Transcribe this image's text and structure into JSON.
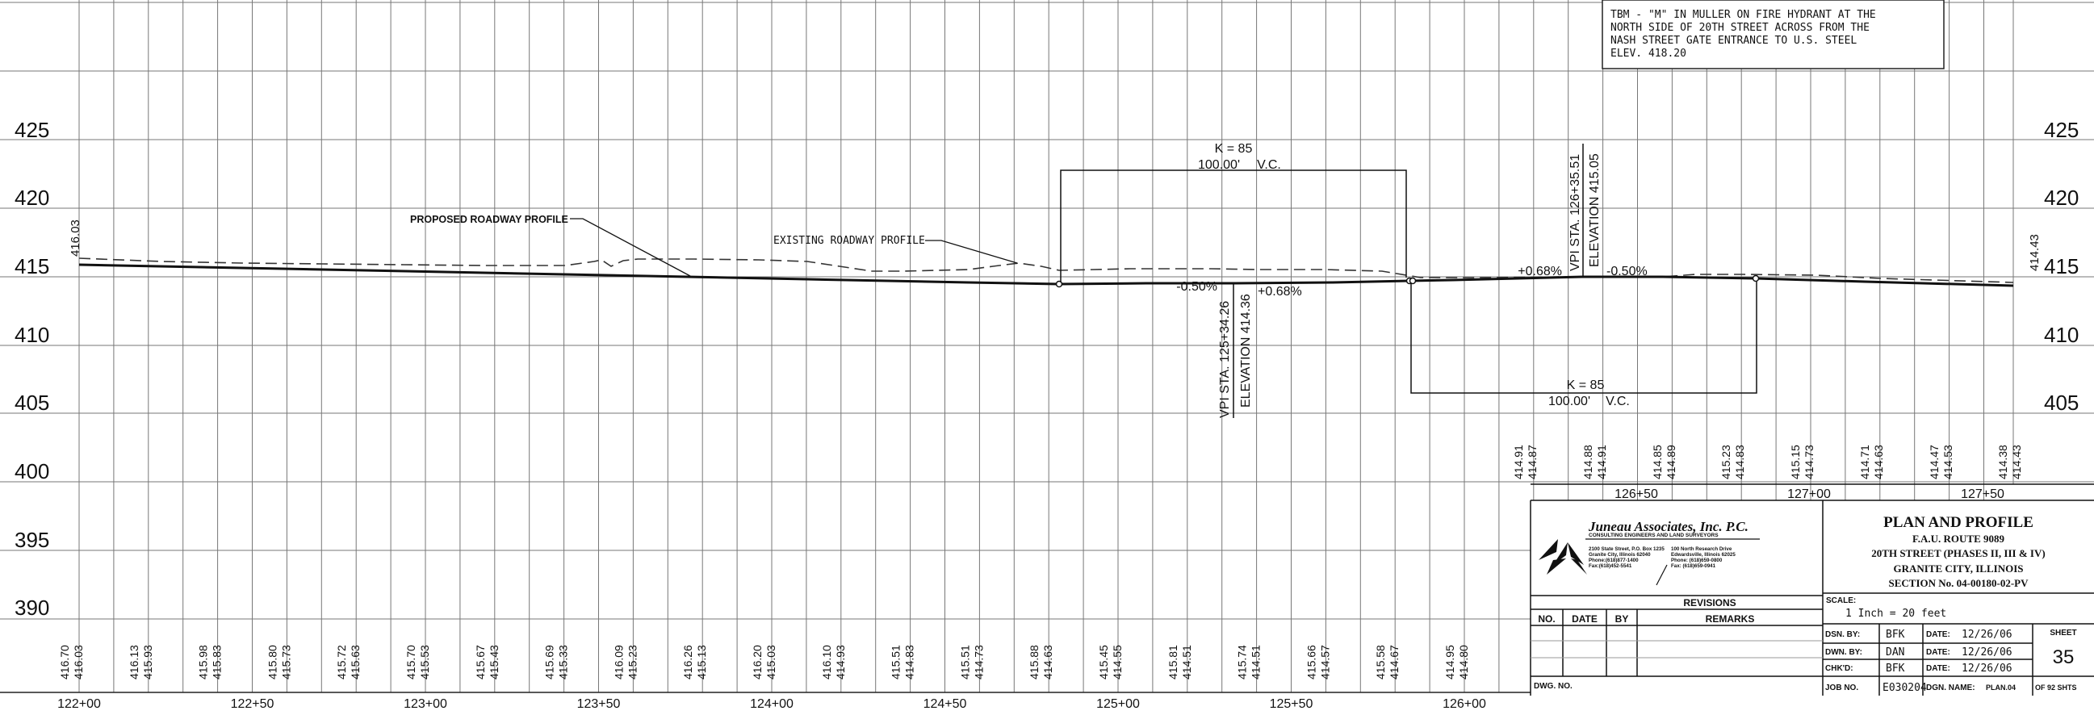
{
  "tbm_note": [
    "TBM - \"M\" IN MULLER ON FIRE HYDRANT AT THE",
    "NORTH SIDE OF 20TH STREET ACROSS FROM THE",
    "NASH STREET GATE ENTRANCE TO U.S. STEEL",
    "ELEV. 418.20"
  ],
  "elevation_labels": [
    "425",
    "420",
    "415",
    "410",
    "405",
    "400",
    "395",
    "390"
  ],
  "profile_labels": {
    "proposed": "PROPOSED ROADWAY PROFILE",
    "existing": "EXISTING ROADWAY PROFILE"
  },
  "curves": [
    {
      "k": "K = 85",
      "length": "100.00'",
      "vc": "V.C."
    },
    {
      "k": "K = 85",
      "length": "100.00'",
      "vc": "V.C."
    }
  ],
  "vpi": [
    {
      "station": "VPI STA. 125+34.26",
      "elevation": "ELEVATION 414.36",
      "grade_in": "-0.50%",
      "grade_out": "+0.68%"
    },
    {
      "station": "VPI STA. 126+35.51",
      "elevation": "ELEVATION 415.05",
      "grade_in": "+0.68%",
      "grade_out": "-0.50%"
    }
  ],
  "start_elev": "416.03",
  "end_elev": "414.43",
  "bottom_elev_pairs": [
    [
      "416.70",
      "416.03"
    ],
    [
      "416.13",
      "415.93"
    ],
    [
      "415.98",
      "415.83"
    ],
    [
      "415.80",
      "415.73"
    ],
    [
      "415.72",
      "415.63"
    ],
    [
      "415.70",
      "415.53"
    ],
    [
      "415.67",
      "415.43"
    ],
    [
      "415.69",
      "415.33"
    ],
    [
      "416.09",
      "415.23"
    ],
    [
      "416.26",
      "415.13"
    ],
    [
      "416.20",
      "415.03"
    ],
    [
      "416.10",
      "414.93"
    ],
    [
      "415.51",
      "414.83"
    ],
    [
      "415.51",
      "414.73"
    ],
    [
      "415.88",
      "414.63"
    ],
    [
      "415.45",
      "414.55"
    ],
    [
      "415.81",
      "414.51"
    ],
    [
      "415.74",
      "414.51"
    ],
    [
      "415.66",
      "414.57"
    ],
    [
      "415.58",
      "414.67"
    ],
    [
      "414.95",
      "414.80"
    ]
  ],
  "right_elev_pairs": [
    [
      "414.91",
      "414.87"
    ],
    [
      "414.88",
      "414.91"
    ],
    [
      "414.85",
      "414.89"
    ],
    [
      "415.23",
      "414.83"
    ],
    [
      "415.15",
      "414.73"
    ],
    [
      "414.71",
      "414.63"
    ],
    [
      "414.47",
      "414.53"
    ],
    [
      "414.38",
      "414.43"
    ]
  ],
  "station_labels": [
    "122+00",
    "122+50",
    "123+00",
    "123+50",
    "124+00",
    "124+50",
    "125+00",
    "125+50",
    "126+00"
  ],
  "right_station_labels": [
    "126+50",
    "127+00",
    "127+50"
  ],
  "title_block": {
    "company": "Juneau Associates, Inc. P.C.",
    "company_sub": "CONSULTING ENGINEERS AND LAND SURVEYORS",
    "addr1": [
      "2100 State Street, P.O. Box 1235",
      "Granite City, Illinois 62040",
      "Phone:(618)877-1400",
      "Fax:(618)452-5541"
    ],
    "addr2": [
      "100 North Research Drive",
      "Edwardsville, Illinois 62025",
      "Phone: (618)659-0800",
      "Fax: (618)659-0941"
    ],
    "title": "PLAN AND PROFILE",
    "route": "F.A.U. ROUTE 9089",
    "street": "20TH STREET (PHASES II, III & IV)",
    "city": "GRANITE CITY, ILLINOIS",
    "section": "SECTION No. 04-00180-02-PV",
    "revisions_label": "REVISIONS",
    "rev_cols": [
      "NO.",
      "DATE",
      "BY",
      "REMARKS"
    ],
    "scale_label": "SCALE:",
    "scale_value": "1 Inch = 20 feet",
    "dsn_label": "DSN. BY:",
    "dsn_value": "BFK",
    "dwn_label": "DWN. BY:",
    "dwn_value": "DAN",
    "chk_label": "CHK'D:",
    "chk_value": "BFK",
    "date_label": "DATE:",
    "date1": "12/26/06",
    "date2": "12/26/06",
    "date3": "12/26/06",
    "sheet_label": "SHEET",
    "sheet_no": "35",
    "job_label": "JOB NO.",
    "job_value": "E030204",
    "dgn_label": "DGN. NAME:",
    "dgn_value": "PLAN.04",
    "of_label": "OF 92 SHTS",
    "dwg_label": "DWG. NO."
  }
}
